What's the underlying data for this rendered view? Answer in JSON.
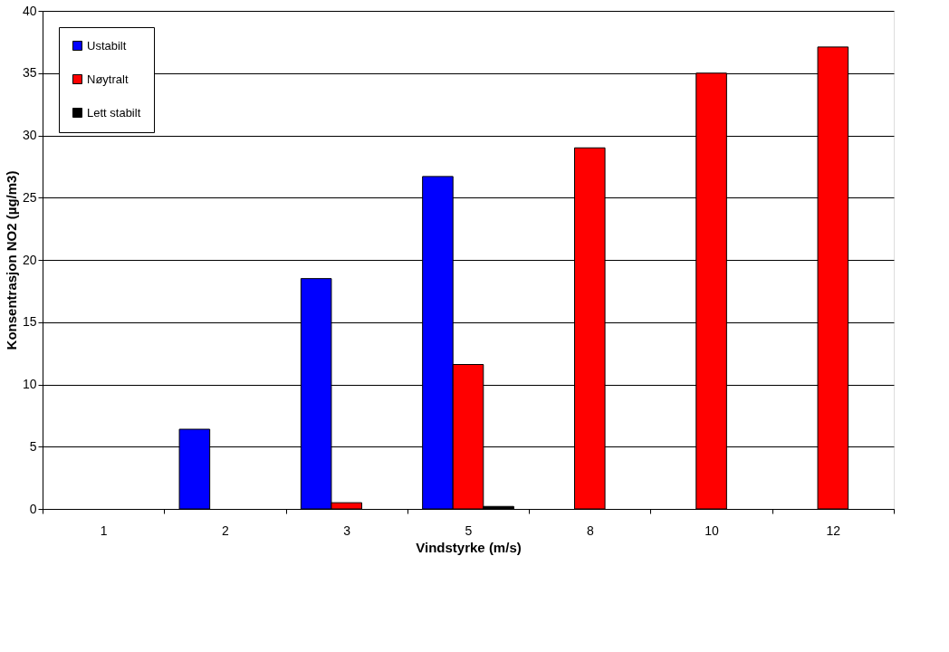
{
  "chart_data": {
    "type": "bar",
    "xlabel": "Vindstyrke (m/s)",
    "ylabel": "Konsentrasjon NO2 (µg/m3)",
    "categories": [
      "1",
      "2",
      "3",
      "5",
      "8",
      "10",
      "12"
    ],
    "series": [
      {
        "name": "Ustabilt",
        "color": "#0000ff",
        "values": [
          null,
          6.4,
          18.5,
          26.7,
          null,
          null,
          null
        ]
      },
      {
        "name": "Nøytralt",
        "color": "#ff0000",
        "values": [
          null,
          null,
          0.5,
          11.6,
          29.0,
          35.0,
          37.1
        ]
      },
      {
        "name": "Lett stabilt",
        "color": "#000000",
        "values": [
          null,
          null,
          null,
          0.2,
          null,
          null,
          null
        ]
      }
    ],
    "ylim": [
      0,
      40
    ],
    "yticks": [
      0,
      5,
      10,
      15,
      20,
      25,
      30,
      35,
      40
    ],
    "grid": "y",
    "legend": "top left"
  }
}
